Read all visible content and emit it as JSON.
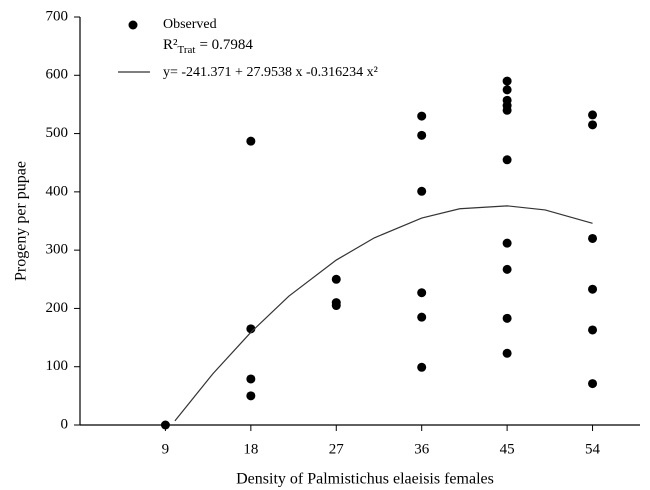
{
  "chart_data": {
    "type": "scatter",
    "xlabel": "Density of Palmistichus elaeisis females",
    "ylabel": "Progeny per pupae",
    "xlim": [
      0,
      59
    ],
    "xticks": [
      9,
      18,
      27,
      36,
      45,
      54
    ],
    "ylim": [
      0,
      700
    ],
    "yticks": [
      0,
      100,
      200,
      300,
      400,
      500,
      600,
      700
    ],
    "r2": {
      "label": "R²",
      "subscript": "Trat",
      "text": "= 0.7984"
    },
    "series": [
      {
        "name": "Observed",
        "type": "scatter",
        "color": "#000000",
        "x": [
          9,
          18,
          18,
          18,
          18,
          27,
          27,
          27,
          36,
          36,
          36,
          36,
          36,
          36,
          45,
          45,
          45,
          45,
          45,
          45,
          45,
          45,
          45,
          45,
          54,
          54,
          54,
          54,
          54,
          54
        ],
        "values": [
          0,
          487,
          165,
          79,
          50,
          250,
          210,
          205,
          530,
          497,
          401,
          227,
          185,
          99,
          590,
          575,
          557,
          548,
          540,
          455,
          312,
          267,
          183,
          123,
          532,
          515,
          320,
          233,
          163,
          71
        ]
      },
      {
        "name": "y= -241.371 + 27.9538 x -0.316234 x²",
        "type": "line",
        "color": "#333333",
        "x": [
          10,
          14,
          18,
          22,
          27,
          31,
          36,
          40,
          45,
          49,
          54
        ],
        "values": [
          7,
          88,
          159,
          221,
          283,
          321,
          355,
          371,
          376,
          369,
          346
        ]
      }
    ]
  }
}
